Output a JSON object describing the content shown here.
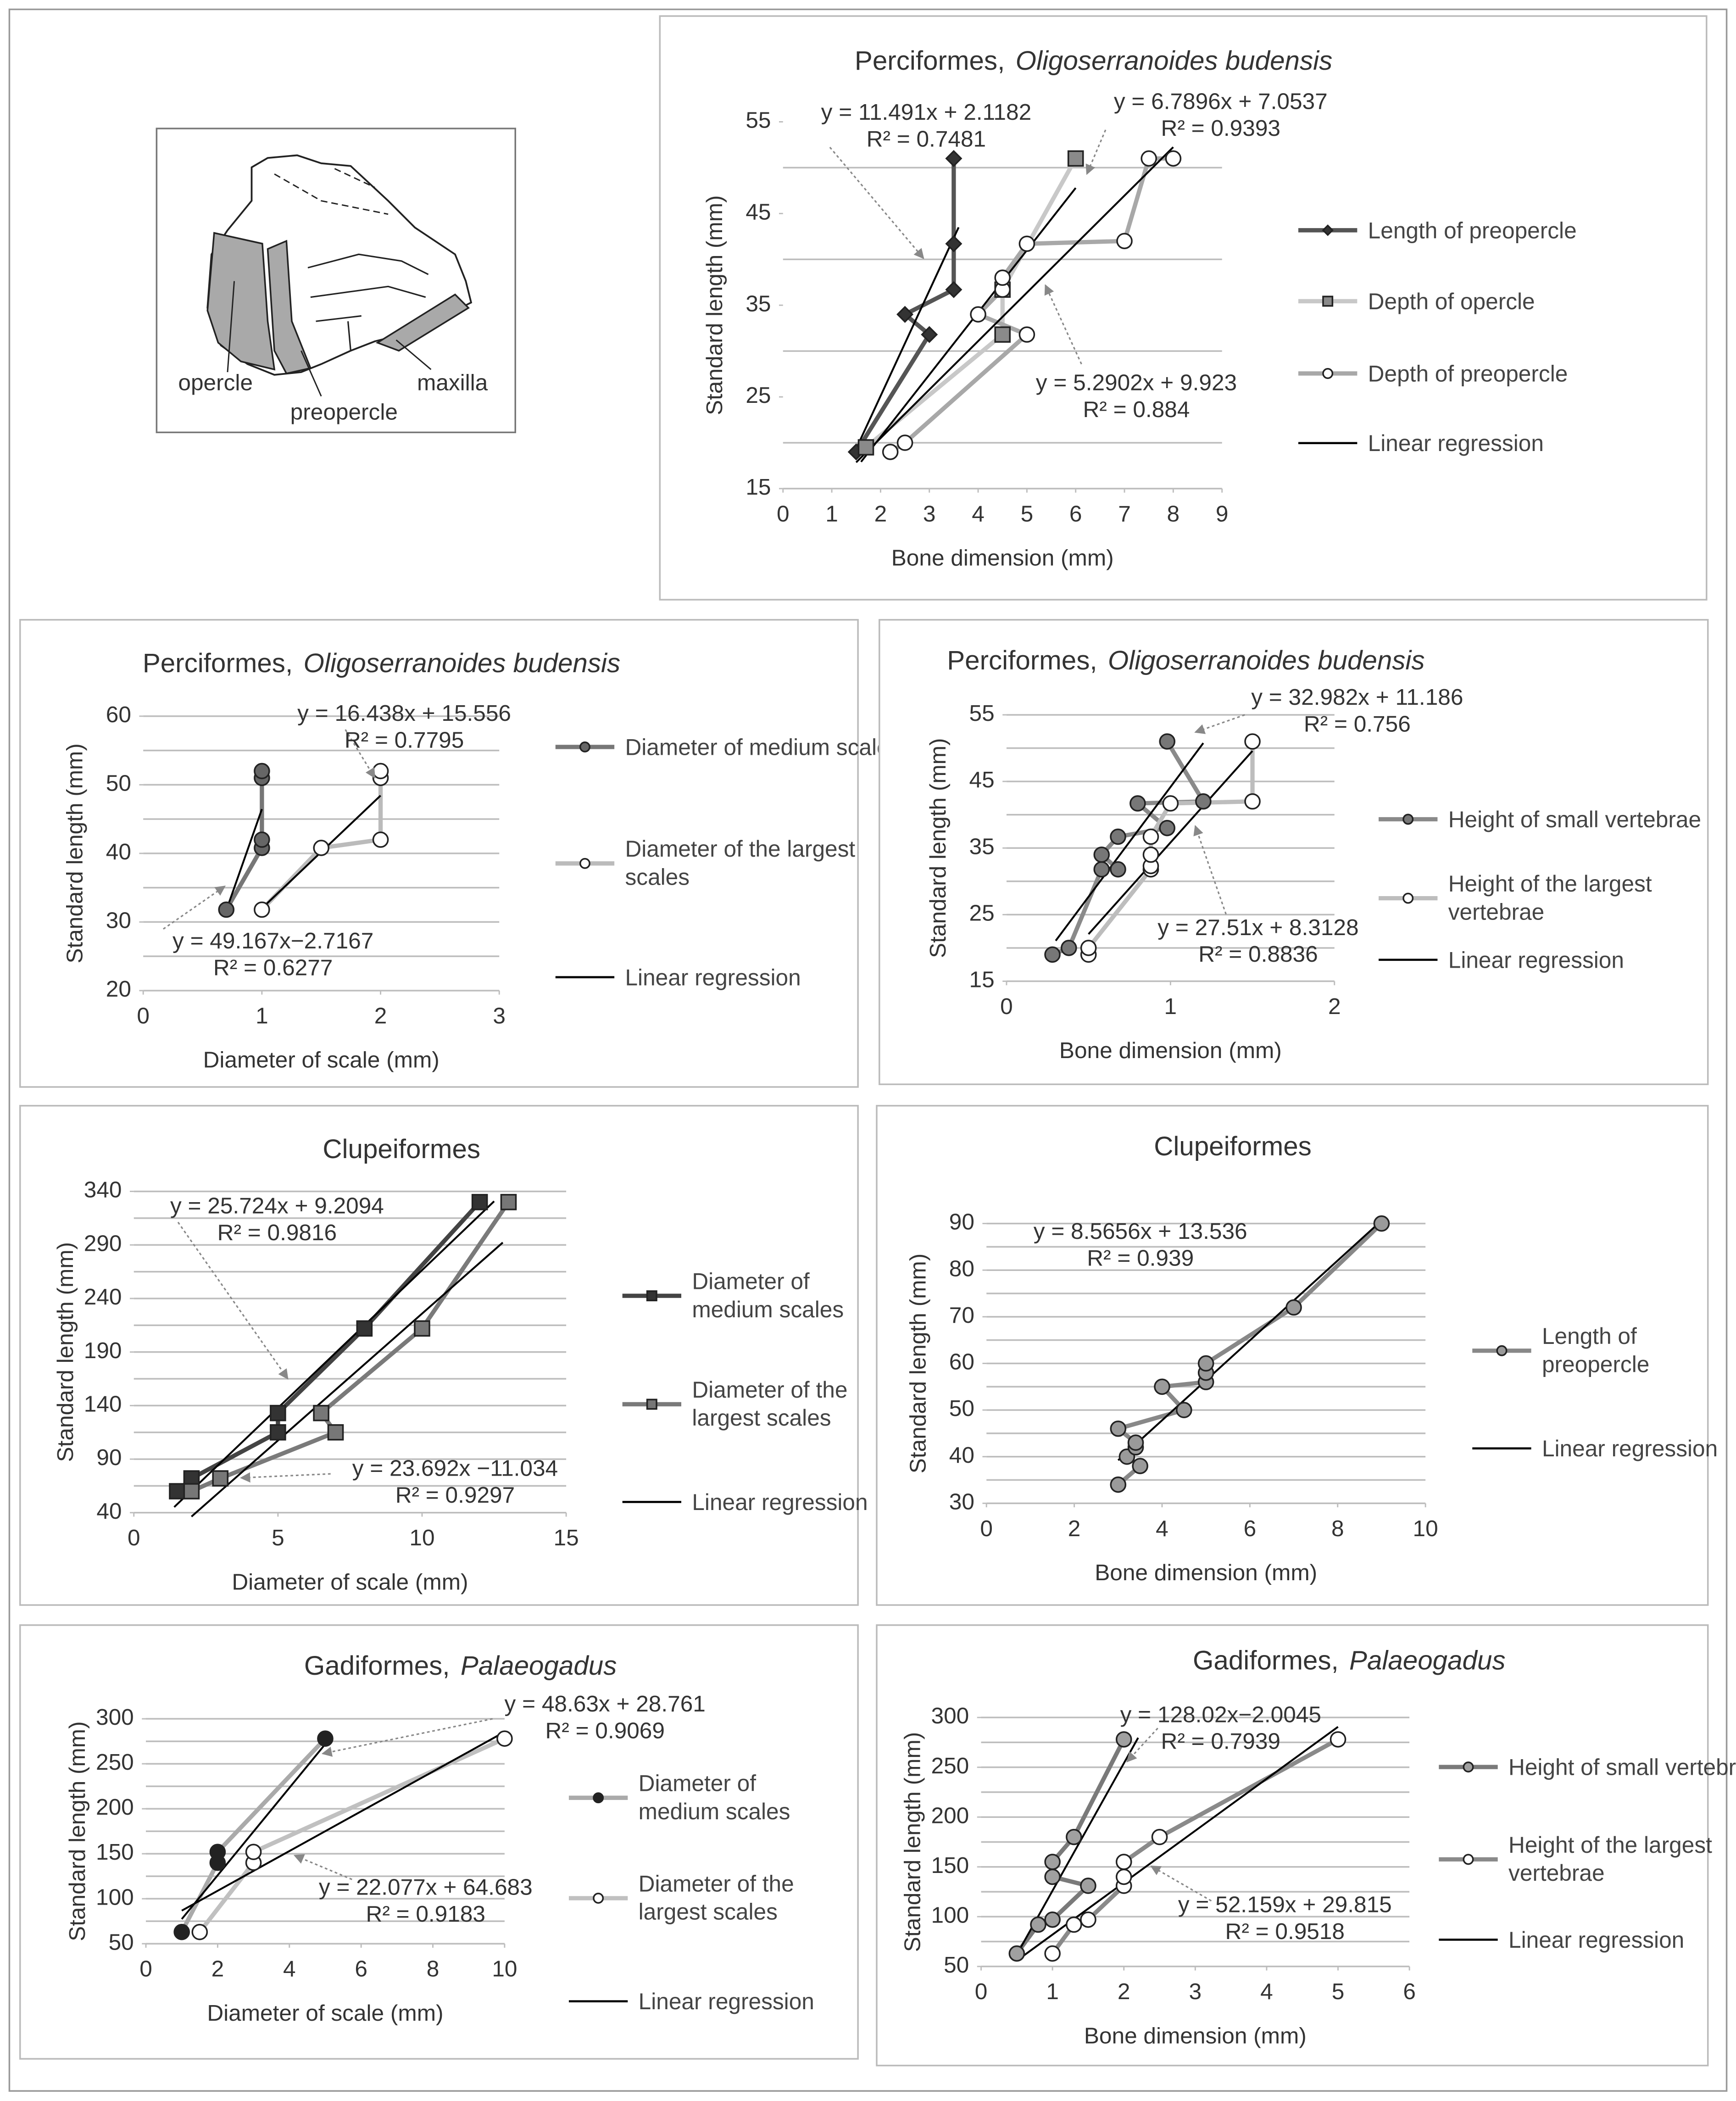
{
  "diagram": {
    "labels": [
      "opercle",
      "preopercle",
      "maxilla"
    ]
  },
  "chart_data": [
    {
      "type": "line",
      "title": "Perciformes,",
      "title_italic": "Oligoserranoides budensis",
      "x_label": "Bone dimension (mm)",
      "y_label": "Standard length (mm)",
      "xlim": [
        0,
        9
      ],
      "xticks": [
        0,
        1,
        2,
        3,
        4,
        5,
        6,
        7,
        8,
        9
      ],
      "ylim": [
        15,
        55
      ],
      "yticks": [
        15,
        25,
        35,
        45,
        55
      ],
      "ygrid": [
        20,
        30,
        40,
        50
      ],
      "series": [
        {
          "name": "Length of preopercle",
          "color": "#555555",
          "marker": "diamond",
          "marker_fill": "#333333",
          "x": [
            1.5,
            3,
            2.5,
            3.5,
            3.5,
            3.5
          ],
          "values": [
            19,
            31.8,
            34,
            36.7,
            41.7,
            51
          ]
        },
        {
          "name": "Depth of opercle",
          "color": "#c8c8c8",
          "marker": "square",
          "marker_fill": "#8a8a8a",
          "x": [
            1.7,
            4.5,
            4.5,
            6
          ],
          "values": [
            19.5,
            31.8,
            36.7,
            51
          ]
        },
        {
          "name": "Depth of preopercle",
          "color": "#a8a8a8",
          "marker": "circle",
          "marker_fill": "#ffffff",
          "x": [
            2.2,
            2.5,
            5,
            4,
            4.5,
            4.5,
            5,
            7,
            7.5,
            8
          ],
          "values": [
            19,
            20,
            31.8,
            34,
            36.7,
            38,
            41.7,
            42,
            51,
            51
          ]
        }
      ],
      "regression_label": "Linear regression",
      "regression_color": "#000000",
      "regressions": [
        {
          "x": [
            1.5,
            3.6
          ],
          "values": [
            19.35,
            43.49
          ]
        },
        {
          "x": [
            1.6,
            6
          ],
          "values": [
            17.92,
            47.79
          ]
        },
        {
          "x": [
            1.5,
            8
          ],
          "values": [
            17.86,
            52.24
          ]
        }
      ],
      "annotations": [
        [
          "y = 11.491x + 2.1182",
          "R² = 0.7481"
        ],
        [
          "y = 6.7896x + 7.0537",
          "R² = 0.9393"
        ],
        [
          "y = 5.2902x + 9.923",
          "R² = 0.884"
        ]
      ]
    },
    {
      "type": "line",
      "title": "Perciformes,",
      "title_italic": "Oligoserranoides budensis",
      "x_label": "Diameter of scale (mm)",
      "y_label": "Standard length (mm)",
      "xlim": [
        0,
        3
      ],
      "xticks": [
        0,
        1,
        2,
        3
      ],
      "ylim": [
        20,
        60
      ],
      "yticks": [
        20,
        30,
        40,
        50,
        60
      ],
      "ygrid": [
        25,
        30,
        35,
        40,
        45,
        50,
        55,
        60
      ],
      "series": [
        {
          "name": "Diameter of medium scales",
          "color": "#777777",
          "marker": "circle",
          "marker_fill": "#666666",
          "x": [
            0.7,
            1,
            1,
            1,
            1
          ],
          "values": [
            31.8,
            40.8,
            42,
            51,
            52
          ]
        },
        {
          "name": "Diameter of the largest scales",
          "color": "#bbbbbb",
          "marker": "circle",
          "marker_fill": "#ffffff",
          "x": [
            1,
            1.5,
            2,
            2,
            2
          ],
          "values": [
            31.8,
            40.8,
            42,
            51,
            52
          ]
        }
      ],
      "regression_label": "Linear regression",
      "regression_color": "#000000",
      "regressions": [
        {
          "x": [
            0.7,
            1
          ],
          "values": [
            31.7,
            46.45
          ]
        },
        {
          "x": [
            1,
            2
          ],
          "values": [
            31.99,
            48.43
          ]
        }
      ],
      "annotations": [
        [
          "y = 16.438x + 15.556",
          "R² = 0.7795"
        ],
        [
          "y = 49.167x−2.7167",
          "R² = 0.6277"
        ]
      ]
    },
    {
      "type": "line",
      "title": "Perciformes,",
      "title_italic": "Oligoserranoides budensis",
      "x_label": "Bone dimension (mm)",
      "y_label": "Standard length (mm)",
      "xlim": [
        0,
        2
      ],
      "xticks": [
        0,
        1,
        2
      ],
      "ylim": [
        15,
        55
      ],
      "yticks": [
        15,
        25,
        35,
        45,
        55
      ],
      "ygrid": [
        20,
        25,
        30,
        35,
        40,
        45,
        50,
        55
      ],
      "series": [
        {
          "name": "Height of small vertebrae",
          "color": "#8a8a8a",
          "marker": "circle",
          "marker_fill": "#777777",
          "x": [
            0.28,
            0.38,
            0.58,
            0.68,
            0.58,
            0.68,
            0.98,
            0.8,
            1.2,
            0.98
          ],
          "values": [
            19,
            20,
            31.8,
            31.8,
            34,
            36.7,
            38,
            41.7,
            42,
            51
          ]
        },
        {
          "name": "Height of the largest vertebrae",
          "color": "#bdbdbd",
          "marker": "circle",
          "marker_fill": "#ffffff",
          "x": [
            0.5,
            0.5,
            0.88,
            0.88,
            0.88,
            0.88,
            1,
            1.5,
            1.5
          ],
          "values": [
            19,
            20,
            31.8,
            32.3,
            34,
            36.7,
            41.7,
            42,
            51
          ]
        }
      ],
      "regression_label": "Linear regression",
      "regression_color": "#000000",
      "regressions": [
        {
          "x": [
            0.3,
            1.2
          ],
          "values": [
            21.08,
            50.76
          ]
        },
        {
          "x": [
            0.5,
            1.5
          ],
          "values": [
            22.07,
            49.58
          ]
        }
      ],
      "annotations": [
        [
          "y = 32.982x + 11.186",
          "R² = 0.756"
        ],
        [
          "y = 27.51x + 8.3128",
          "R² = 0.8836"
        ]
      ]
    },
    {
      "type": "line",
      "title": "Clupeiformes",
      "x_label": "Diameter of scale (mm)",
      "y_label": "Standard length (mm)",
      "xlim": [
        0,
        15
      ],
      "xticks": [
        0,
        5,
        10,
        15
      ],
      "ylim": [
        40,
        340
      ],
      "yticks": [
        40,
        90,
        140,
        190,
        240,
        290,
        340
      ],
      "ygrid": [
        65,
        90,
        115,
        140,
        165,
        190,
        215,
        240,
        265,
        290,
        315,
        340
      ],
      "series": [
        {
          "name": "Diameter of medium scales",
          "color": "#444444",
          "marker": "square",
          "marker_fill": "#333333",
          "x": [
            1.5,
            2,
            5,
            5,
            8,
            12
          ],
          "values": [
            60,
            72,
            115,
            133,
            212,
            330
          ]
        },
        {
          "name": "Diameter of the largest scales",
          "color": "#7a7a7a",
          "marker": "square",
          "marker_fill": "#777777",
          "x": [
            2,
            3,
            7,
            6.5,
            10,
            13
          ],
          "values": [
            60,
            72,
            115,
            133,
            212,
            330
          ]
        }
      ],
      "regression_label": "Linear regression",
      "regression_color": "#000000",
      "regressions": [
        {
          "x": [
            1.4,
            12.5
          ],
          "values": [
            45.22,
            330.76
          ]
        },
        {
          "x": [
            2,
            12.8
          ],
          "values": [
            36.35,
            292.22
          ]
        }
      ],
      "annotations": [
        [
          "y = 25.724x + 9.2094",
          "R² = 0.9816"
        ],
        [
          "y = 23.692x  −11.034",
          "R² = 0.9297"
        ]
      ]
    },
    {
      "type": "line",
      "title": "Clupeiformes",
      "x_label": "Bone dimension (mm)",
      "y_label": "Standard length (mm)",
      "xlim": [
        0,
        10
      ],
      "xticks": [
        0,
        2,
        4,
        6,
        8,
        10
      ],
      "ylim": [
        30,
        90
      ],
      "yticks": [
        30,
        40,
        50,
        60,
        70,
        80,
        90
      ],
      "ygrid": [
        35,
        40,
        45,
        50,
        55,
        60,
        65,
        70,
        75,
        80,
        85,
        90
      ],
      "series": [
        {
          "name": "Length of preopercle",
          "color": "#888888",
          "marker": "circle",
          "marker_fill": "#9a9a9a",
          "x": [
            3,
            3.5,
            3.2,
            3.4,
            3.4,
            3,
            4.5,
            4,
            5,
            5,
            5,
            7,
            9
          ],
          "values": [
            34,
            38,
            40,
            42,
            43,
            46,
            50,
            55,
            56,
            58,
            60,
            72,
            90
          ]
        }
      ],
      "regression_label": "Linear regression",
      "regression_color": "#000000",
      "regressions": [
        {
          "x": [
            3,
            9
          ],
          "values": [
            39.23,
            90.63
          ]
        }
      ],
      "annotations": [
        [
          "y = 8.5656x + 13.536",
          "R² = 0.939"
        ]
      ]
    },
    {
      "type": "line",
      "title": "Gadiformes,",
      "title_italic": "Palaeogadus",
      "x_label": "Diameter of scale (mm)",
      "y_label": "Standard length (mm)",
      "xlim": [
        0,
        10
      ],
      "xticks": [
        0,
        2,
        4,
        6,
        8,
        10
      ],
      "ylim": [
        50,
        300
      ],
      "yticks": [
        50,
        100,
        150,
        200,
        250,
        300
      ],
      "ygrid": [
        75,
        100,
        125,
        150,
        175,
        200,
        225,
        250,
        275,
        300
      ],
      "series": [
        {
          "name": "Diameter of medium scales",
          "color": "#aaaaaa",
          "marker": "circle",
          "marker_fill": "#222222",
          "x": [
            1,
            2,
            2,
            5
          ],
          "values": [
            63,
            140,
            152,
            278
          ]
        },
        {
          "name": "Diameter of the largest scales",
          "color": "#c0c0c0",
          "marker": "circle",
          "marker_fill": "#ffffff",
          "x": [
            1.5,
            3,
            3,
            10
          ],
          "values": [
            63,
            140,
            152,
            278
          ]
        }
      ],
      "regression_label": "Linear regression",
      "regression_color": "#000000",
      "regressions": [
        {
          "x": [
            1,
            5
          ],
          "values": [
            77.39,
            271.91
          ]
        },
        {
          "x": [
            1,
            10
          ],
          "values": [
            86.76,
            285.45
          ]
        }
      ],
      "annotations": [
        [
          "y = 48.63x + 28.761",
          "R² = 0.9069"
        ],
        [
          "y = 22.077x + 64.683",
          "R² = 0.9183"
        ]
      ]
    },
    {
      "type": "line",
      "title": "Gadiformes,",
      "title_italic": "Palaeogadus",
      "x_label": "Bone dimension (mm)",
      "y_label": "Standard length (mm)",
      "xlim": [
        0,
        6
      ],
      "xticks": [
        0,
        1,
        2,
        3,
        4,
        5,
        6
      ],
      "ylim": [
        50,
        300
      ],
      "yticks": [
        50,
        100,
        150,
        200,
        250,
        300
      ],
      "ygrid": [
        75,
        100,
        125,
        150,
        175,
        200,
        225,
        250,
        275,
        300
      ],
      "series": [
        {
          "name": "Height of small vertebrae",
          "color": "#7a7a7a",
          "marker": "circle",
          "marker_fill": "#a0a0a0",
          "x": [
            0.5,
            0.8,
            1,
            1.5,
            1,
            1,
            1.3,
            2
          ],
          "values": [
            63,
            92,
            97,
            131,
            140,
            155,
            180,
            278
          ]
        },
        {
          "name": "Height of the largest vertebrae",
          "color": "#8a8a8a",
          "marker": "circle",
          "marker_fill": "#ffffff",
          "x": [
            1,
            1.3,
            1.5,
            2,
            2,
            2,
            2.5,
            5
          ],
          "values": [
            63,
            92,
            97,
            131,
            140,
            155,
            180,
            278
          ]
        }
      ],
      "regression_label": "Linear regression",
      "regression_color": "#000000",
      "regressions": [
        {
          "x": [
            0.5,
            2.2
          ],
          "values": [
            62.0,
            279.64
          ]
        },
        {
          "x": [
            0.6,
            5
          ],
          "values": [
            61.11,
            290.61
          ]
        }
      ],
      "annotations": [
        [
          "y = 128.02x−2.0045",
          "R² = 0.7939"
        ],
        [
          "y = 52.159x + 29.815",
          "R² = 0.9518"
        ]
      ]
    }
  ]
}
